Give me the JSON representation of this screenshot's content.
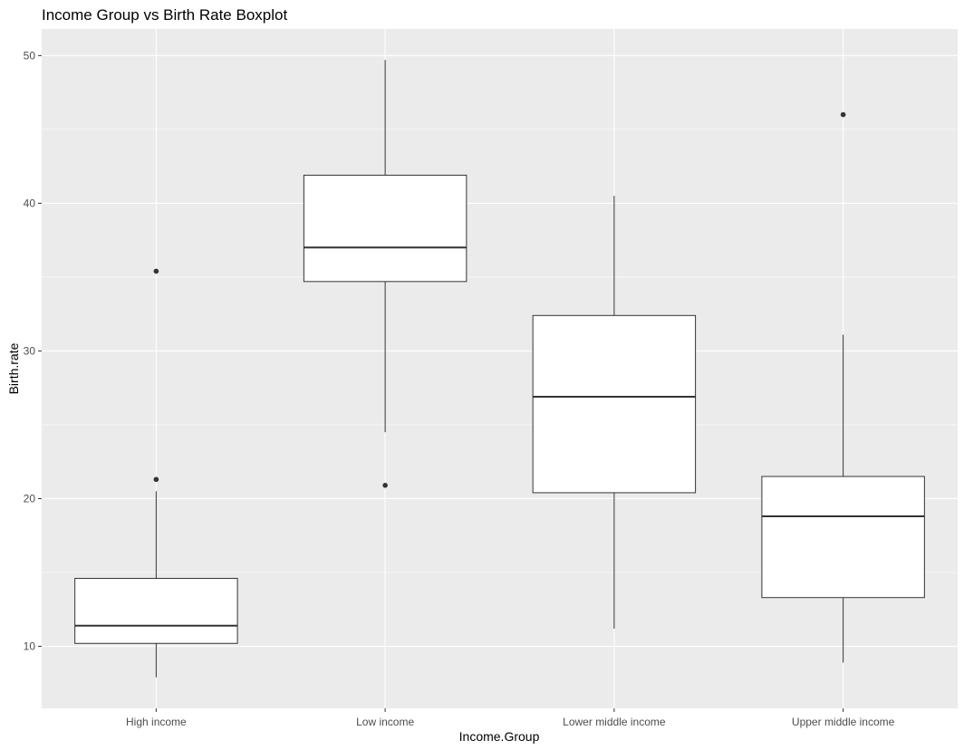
{
  "chart_data": {
    "type": "boxplot",
    "title": "Income Group vs Birth Rate Boxplot",
    "xlabel": "Income.Group",
    "ylabel": "Birth.rate",
    "ylim": [
      5.8,
      51.8
    ],
    "yticks": [
      10,
      20,
      30,
      40,
      50
    ],
    "grid": true,
    "categories": [
      "High income",
      "Low income",
      "Lower middle income",
      "Upper middle income"
    ],
    "boxes": [
      {
        "category": "High income",
        "whisker_low": 7.9,
        "q1": 10.2,
        "median": 11.4,
        "q3": 14.6,
        "whisker_high": 20.5,
        "outliers": [
          21.3,
          35.4
        ]
      },
      {
        "category": "Low income",
        "whisker_low": 24.5,
        "q1": 34.7,
        "median": 37.0,
        "q3": 41.9,
        "whisker_high": 49.7,
        "outliers": [
          20.9
        ]
      },
      {
        "category": "Lower middle income",
        "whisker_low": 11.2,
        "q1": 20.4,
        "median": 26.9,
        "q3": 32.4,
        "whisker_high": 40.5,
        "outliers": []
      },
      {
        "category": "Upper middle income",
        "whisker_low": 8.9,
        "q1": 13.3,
        "median": 18.8,
        "q3": 21.5,
        "whisker_high": 31.1,
        "outliers": [
          46.0
        ]
      }
    ],
    "colors": {
      "panel": "#ebebeb",
      "grid_major": "#ffffff",
      "box_fill": "#ffffff",
      "box_line": "#333333",
      "outlier": "#333333",
      "tick_text": "#4d4d4d",
      "tick_mark": "#333333"
    }
  }
}
